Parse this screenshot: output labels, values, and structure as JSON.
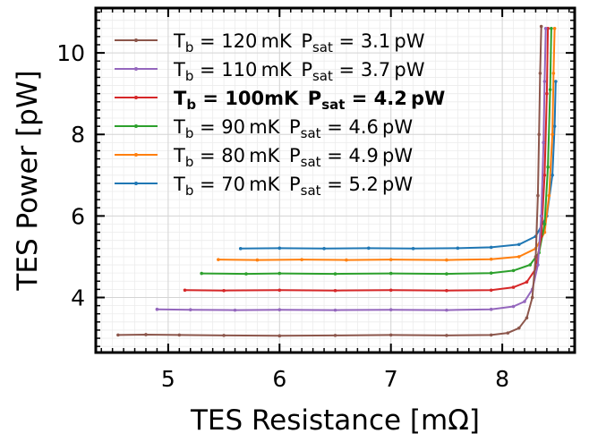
{
  "chart_data": {
    "type": "line",
    "title": "",
    "xlabel": "TES Resistance [mΩ]",
    "ylabel": "TES Power [pW]",
    "xlim": [
      4.35,
      8.65
    ],
    "ylim": [
      2.65,
      11.1
    ],
    "xticks": [
      5,
      6,
      7,
      8
    ],
    "yticks": [
      4,
      6,
      8,
      10
    ],
    "x_minor_step": 0.1,
    "y_minor_step": 0.2,
    "grid": true,
    "legend_position": "upper-left",
    "series": [
      {
        "name": "T_b = 120 mK  P_sat = 3.1 pW",
        "Tb": "120",
        "Psat": "3.1",
        "color": "#8c564b",
        "bold": false,
        "x": [
          4.55,
          4.8,
          5.1,
          5.5,
          6.0,
          6.5,
          7.0,
          7.5,
          7.9,
          8.05,
          8.15,
          8.22,
          8.27,
          8.3,
          8.32,
          8.33,
          8.34,
          8.35
        ],
        "y": [
          3.08,
          3.09,
          3.08,
          3.07,
          3.06,
          3.07,
          3.08,
          3.07,
          3.08,
          3.13,
          3.25,
          3.5,
          4.0,
          5.0,
          6.5,
          8.0,
          9.5,
          10.65
        ]
      },
      {
        "name": "T_b = 110 mK  P_sat = 3.7 pW",
        "Tb": "110",
        "Psat": "3.7",
        "color": "#9467bd",
        "bold": false,
        "x": [
          4.9,
          5.2,
          5.6,
          6.0,
          6.5,
          7.0,
          7.5,
          7.9,
          8.1,
          8.2,
          8.27,
          8.32,
          8.35,
          8.37,
          8.38,
          8.39
        ],
        "y": [
          3.71,
          3.7,
          3.69,
          3.7,
          3.69,
          3.7,
          3.69,
          3.71,
          3.78,
          3.9,
          4.2,
          4.8,
          6.0,
          7.8,
          9.3,
          10.6
        ]
      },
      {
        "name": "T_b = 100mK  P_sat = 4.2 pW",
        "Tb": "100",
        "Psat": "4.2",
        "color": "#d62728",
        "bold": true,
        "x": [
          5.15,
          5.5,
          6.0,
          6.5,
          7.0,
          7.5,
          7.9,
          8.1,
          8.22,
          8.3,
          8.35,
          8.38,
          8.4,
          8.41
        ],
        "y": [
          4.18,
          4.17,
          4.18,
          4.17,
          4.18,
          4.17,
          4.18,
          4.25,
          4.38,
          4.7,
          5.5,
          7.0,
          9.0,
          10.6
        ]
      },
      {
        "name": "T_b = 90 mK  P_sat = 4.6 pW",
        "Tb": "90",
        "Psat": "4.6",
        "color": "#2ca02c",
        "bold": false,
        "x": [
          5.3,
          5.7,
          6.0,
          6.5,
          7.0,
          7.5,
          7.9,
          8.1,
          8.25,
          8.33,
          8.38,
          8.41,
          8.43,
          8.44
        ],
        "y": [
          4.59,
          4.58,
          4.59,
          4.58,
          4.59,
          4.58,
          4.6,
          4.66,
          4.8,
          5.1,
          5.8,
          7.2,
          9.1,
          10.6
        ]
      },
      {
        "name": "T_b = 80 mK  P_sat = 4.9 pW",
        "Tb": "80",
        "Psat": "4.9",
        "color": "#ff7f0e",
        "bold": false,
        "x": [
          5.45,
          5.8,
          6.2,
          6.6,
          7.0,
          7.5,
          7.9,
          8.15,
          8.3,
          8.38,
          8.42,
          8.45,
          8.46,
          8.47
        ],
        "y": [
          4.93,
          4.92,
          4.93,
          4.92,
          4.93,
          4.92,
          4.94,
          5.0,
          5.2,
          5.6,
          6.5,
          8.0,
          9.5,
          10.6
        ]
      },
      {
        "name": "T_b = 70 mK  P_sat = 5.2 pW",
        "Tb": "70",
        "Psat": "5.2",
        "color": "#1f77b4",
        "bold": false,
        "x": [
          5.65,
          6.0,
          6.4,
          6.8,
          7.2,
          7.6,
          7.9,
          8.15,
          8.3,
          8.4,
          8.45,
          8.47,
          8.48
        ],
        "y": [
          5.2,
          5.21,
          5.2,
          5.21,
          5.2,
          5.21,
          5.23,
          5.3,
          5.5,
          6.0,
          7.0,
          8.2,
          9.3
        ]
      }
    ]
  }
}
